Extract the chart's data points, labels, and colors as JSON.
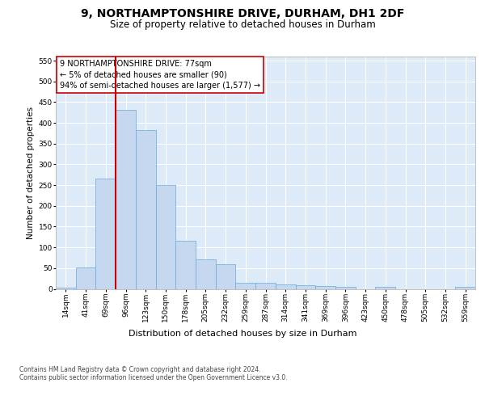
{
  "title": "9, NORTHAMPTONSHIRE DRIVE, DURHAM, DH1 2DF",
  "subtitle": "Size of property relative to detached houses in Durham",
  "xlabel": "Distribution of detached houses by size in Durham",
  "ylabel": "Number of detached properties",
  "categories": [
    "14sqm",
    "41sqm",
    "69sqm",
    "96sqm",
    "123sqm",
    "150sqm",
    "178sqm",
    "205sqm",
    "232sqm",
    "259sqm",
    "287sqm",
    "314sqm",
    "341sqm",
    "369sqm",
    "396sqm",
    "423sqm",
    "450sqm",
    "478sqm",
    "505sqm",
    "532sqm",
    "559sqm"
  ],
  "values": [
    3,
    52,
    265,
    432,
    382,
    250,
    115,
    71,
    60,
    15,
    14,
    11,
    9,
    7,
    4,
    0,
    4,
    0,
    0,
    0,
    5
  ],
  "bar_color": "#c5d8ef",
  "bar_edge_color": "#6aaad4",
  "vline_color": "#cc0000",
  "vline_index": 2.5,
  "annotation_text": "9 NORTHAMPTONSHIRE DRIVE: 77sqm\n← 5% of detached houses are smaller (90)\n94% of semi-detached houses are larger (1,577) →",
  "annotation_box_facecolor": "#ffffff",
  "annotation_box_edgecolor": "#cc0000",
  "ylim": [
    0,
    560
  ],
  "yticks": [
    0,
    50,
    100,
    150,
    200,
    250,
    300,
    350,
    400,
    450,
    500,
    550
  ],
  "bg_color": "#ddeaf7",
  "grid_color": "#ffffff",
  "title_fontsize": 10,
  "subtitle_fontsize": 8.5,
  "xlabel_fontsize": 8,
  "ylabel_fontsize": 7.5,
  "tick_fontsize": 6.5,
  "ann_fontsize": 7,
  "footer_text": "Contains HM Land Registry data © Crown copyright and database right 2024.\nContains public sector information licensed under the Open Government Licence v3.0.",
  "footer_fontsize": 5.5
}
